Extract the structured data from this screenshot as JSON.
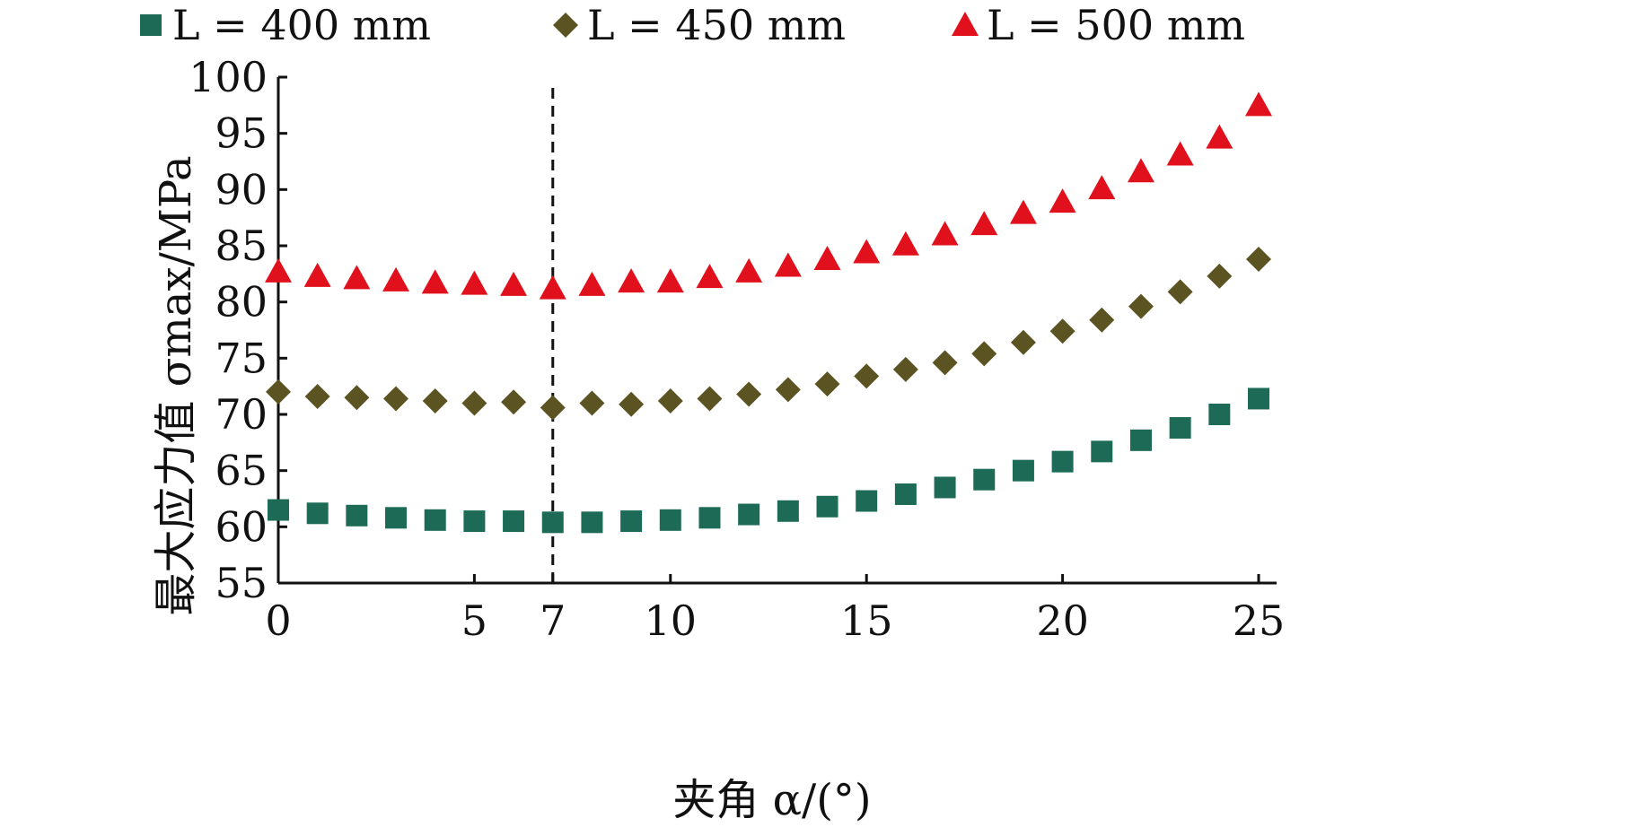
{
  "chart_data": {
    "type": "scatter",
    "xlabel": "夹角 α/(°)",
    "ylabel": "最大应力值 σmax/MPa",
    "xlim": [
      0,
      25
    ],
    "ylim": [
      55,
      100
    ],
    "x_ticks": [
      0,
      5,
      7,
      10,
      15,
      20,
      25
    ],
    "y_ticks": [
      55,
      60,
      65,
      70,
      75,
      80,
      85,
      90,
      95,
      100
    ],
    "reference_line_x": 7,
    "legend_position": "top",
    "grid": false,
    "x": [
      0,
      1,
      2,
      3,
      4,
      5,
      6,
      7,
      8,
      9,
      10,
      11,
      12,
      13,
      14,
      15,
      16,
      17,
      18,
      19,
      20,
      21,
      22,
      23,
      24,
      25
    ],
    "series": [
      {
        "name": "L = 400 mm",
        "marker": "square",
        "color": "#1d6b57",
        "values": [
          61.5,
          61.2,
          61.0,
          60.8,
          60.6,
          60.5,
          60.5,
          60.4,
          60.4,
          60.5,
          60.6,
          60.8,
          61.1,
          61.4,
          61.8,
          62.3,
          62.9,
          63.5,
          64.2,
          65.0,
          65.8,
          66.7,
          67.7,
          68.8,
          70.0,
          71.4
        ]
      },
      {
        "name": "L = 450 mm",
        "marker": "diamond",
        "color": "#5b5422",
        "values": [
          72.0,
          71.6,
          71.5,
          71.4,
          71.2,
          71.0,
          71.1,
          70.6,
          71.0,
          70.9,
          71.2,
          71.4,
          71.8,
          72.2,
          72.7,
          73.4,
          74.0,
          74.6,
          75.4,
          76.4,
          77.4,
          78.4,
          79.6,
          80.9,
          82.3,
          83.8
        ]
      },
      {
        "name": "L = 500 mm",
        "marker": "triangle",
        "color": "#e0101c",
        "values": [
          82.7,
          82.3,
          82.1,
          81.9,
          81.7,
          81.6,
          81.5,
          81.2,
          81.5,
          81.8,
          81.8,
          82.2,
          82.7,
          83.2,
          83.8,
          84.4,
          85.1,
          86.0,
          86.9,
          87.9,
          88.9,
          90.1,
          91.6,
          93.1,
          94.6,
          97.5
        ]
      }
    ]
  }
}
